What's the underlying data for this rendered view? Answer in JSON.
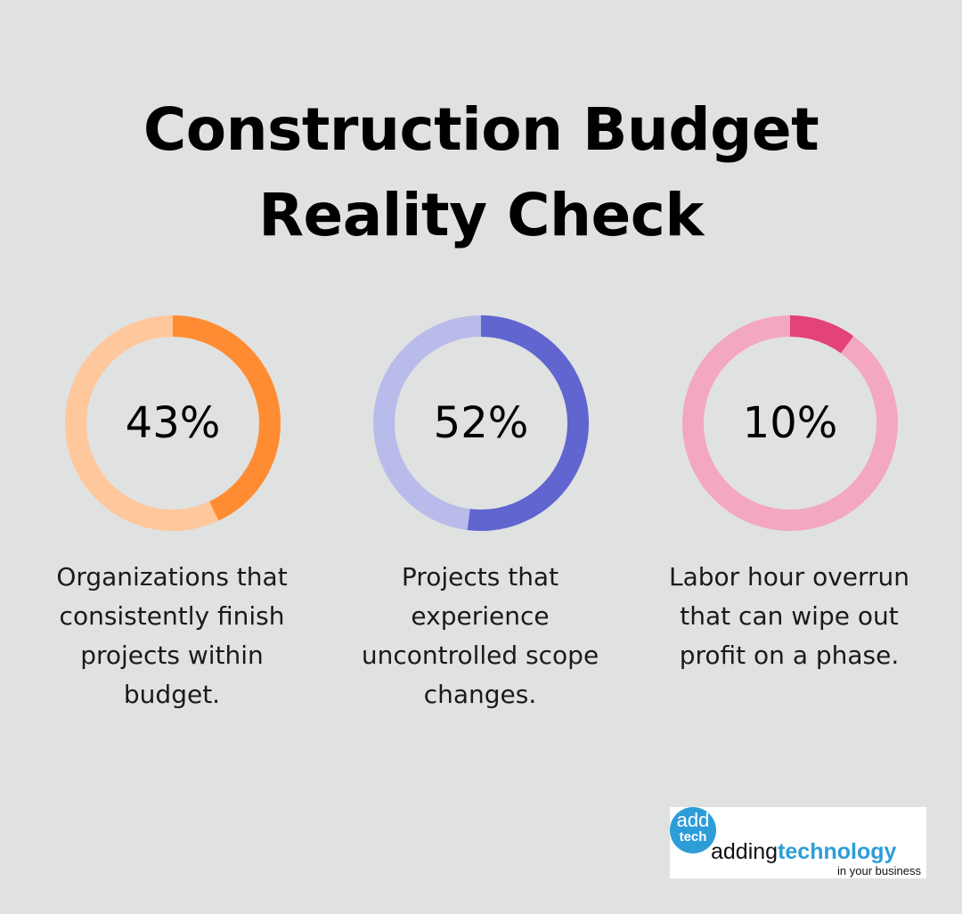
{
  "title_line1": "Construction Budget",
  "title_line2": "Reality Check",
  "stats": [
    {
      "value": "43%",
      "percent": 43,
      "caption": "Organizations that consistently finish projects within budget.",
      "color_fill": "#ff8c33",
      "color_track": "#ffc79c"
    },
    {
      "value": "52%",
      "percent": 52,
      "caption": "Projects that experience uncontrolled scope changes.",
      "color_fill": "#6065d0",
      "color_track": "#b9bbeb"
    },
    {
      "value": "10%",
      "percent": 10,
      "caption": "Labor hour overrun that can wipe out profit on a phase.",
      "color_fill": "#e44377",
      "color_track": "#f3a8bf"
    }
  ],
  "logo": {
    "badge_top": "add",
    "badge_bottom": "tech",
    "name_plain": "adding",
    "name_bold": "technology",
    "tagline": "in your business"
  },
  "chart_data": {
    "type": "pie",
    "title": "Construction Budget Reality Check",
    "subtype": "donut-stat-cards",
    "categories": [
      "Organizations that consistently finish projects within budget.",
      "Projects that experience uncontrolled scope changes.",
      "Labor hour overrun that can wipe out profit on a phase."
    ],
    "values": [
      43,
      52,
      10
    ],
    "unit": "%",
    "colors": [
      "#ff8c33",
      "#6065d0",
      "#e44377"
    ]
  }
}
